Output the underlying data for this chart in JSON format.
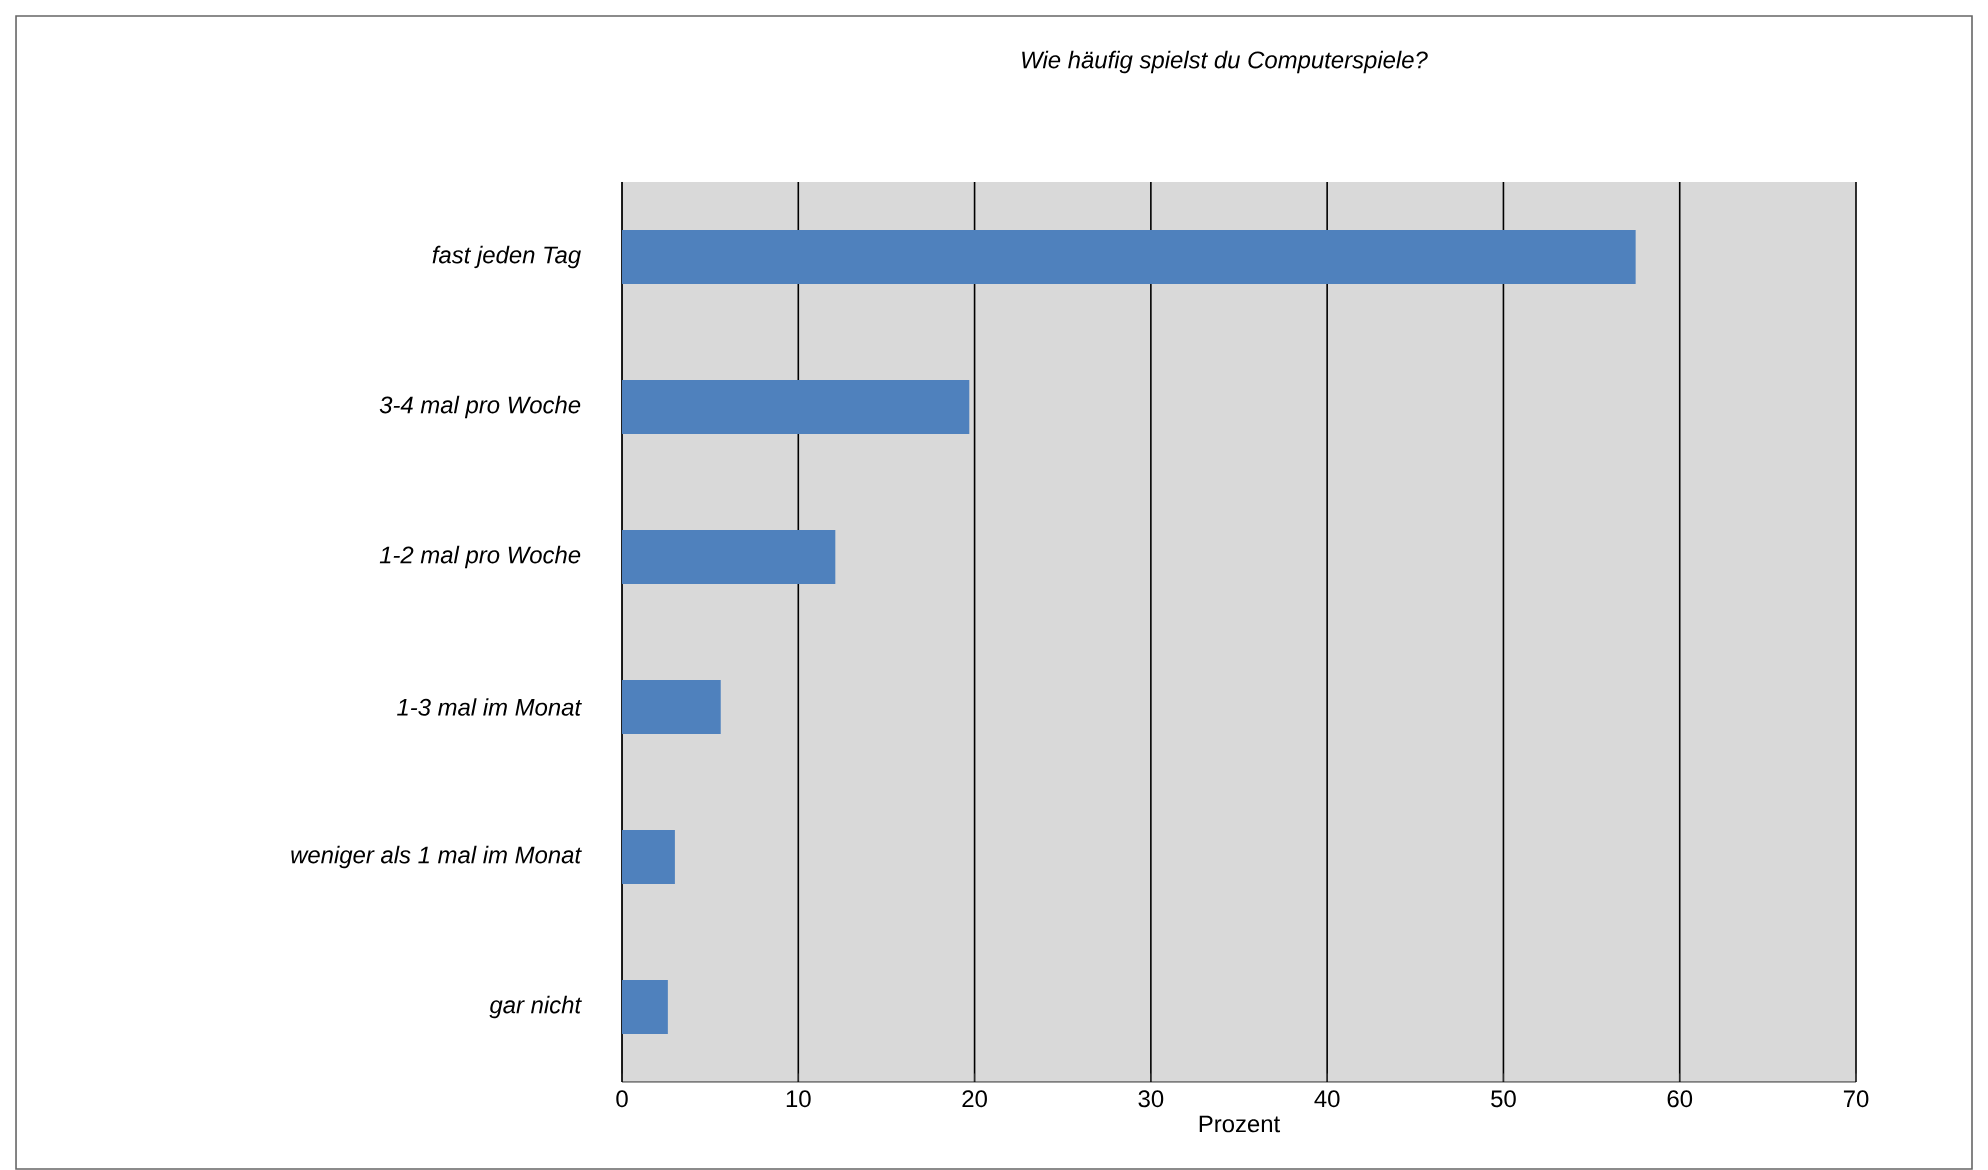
{
  "chart_data": {
    "type": "bar",
    "orientation": "horizontal",
    "title": "Wie häufig spielst du Computerspiele?",
    "xlabel": "Prozent",
    "categories": [
      "fast jeden Tag",
      "3-4 mal pro Woche",
      "1-2 mal pro Woche",
      "1-3 mal im Monat",
      "weniger als 1 mal im Monat",
      "gar nicht"
    ],
    "values": [
      57.5,
      19.7,
      12.1,
      5.6,
      3.0,
      2.6
    ],
    "color": "#4f81bd",
    "xlim": [
      0,
      70
    ],
    "xticks": [
      0,
      10,
      20,
      30,
      40,
      50,
      60,
      70
    ],
    "grid": "x"
  }
}
